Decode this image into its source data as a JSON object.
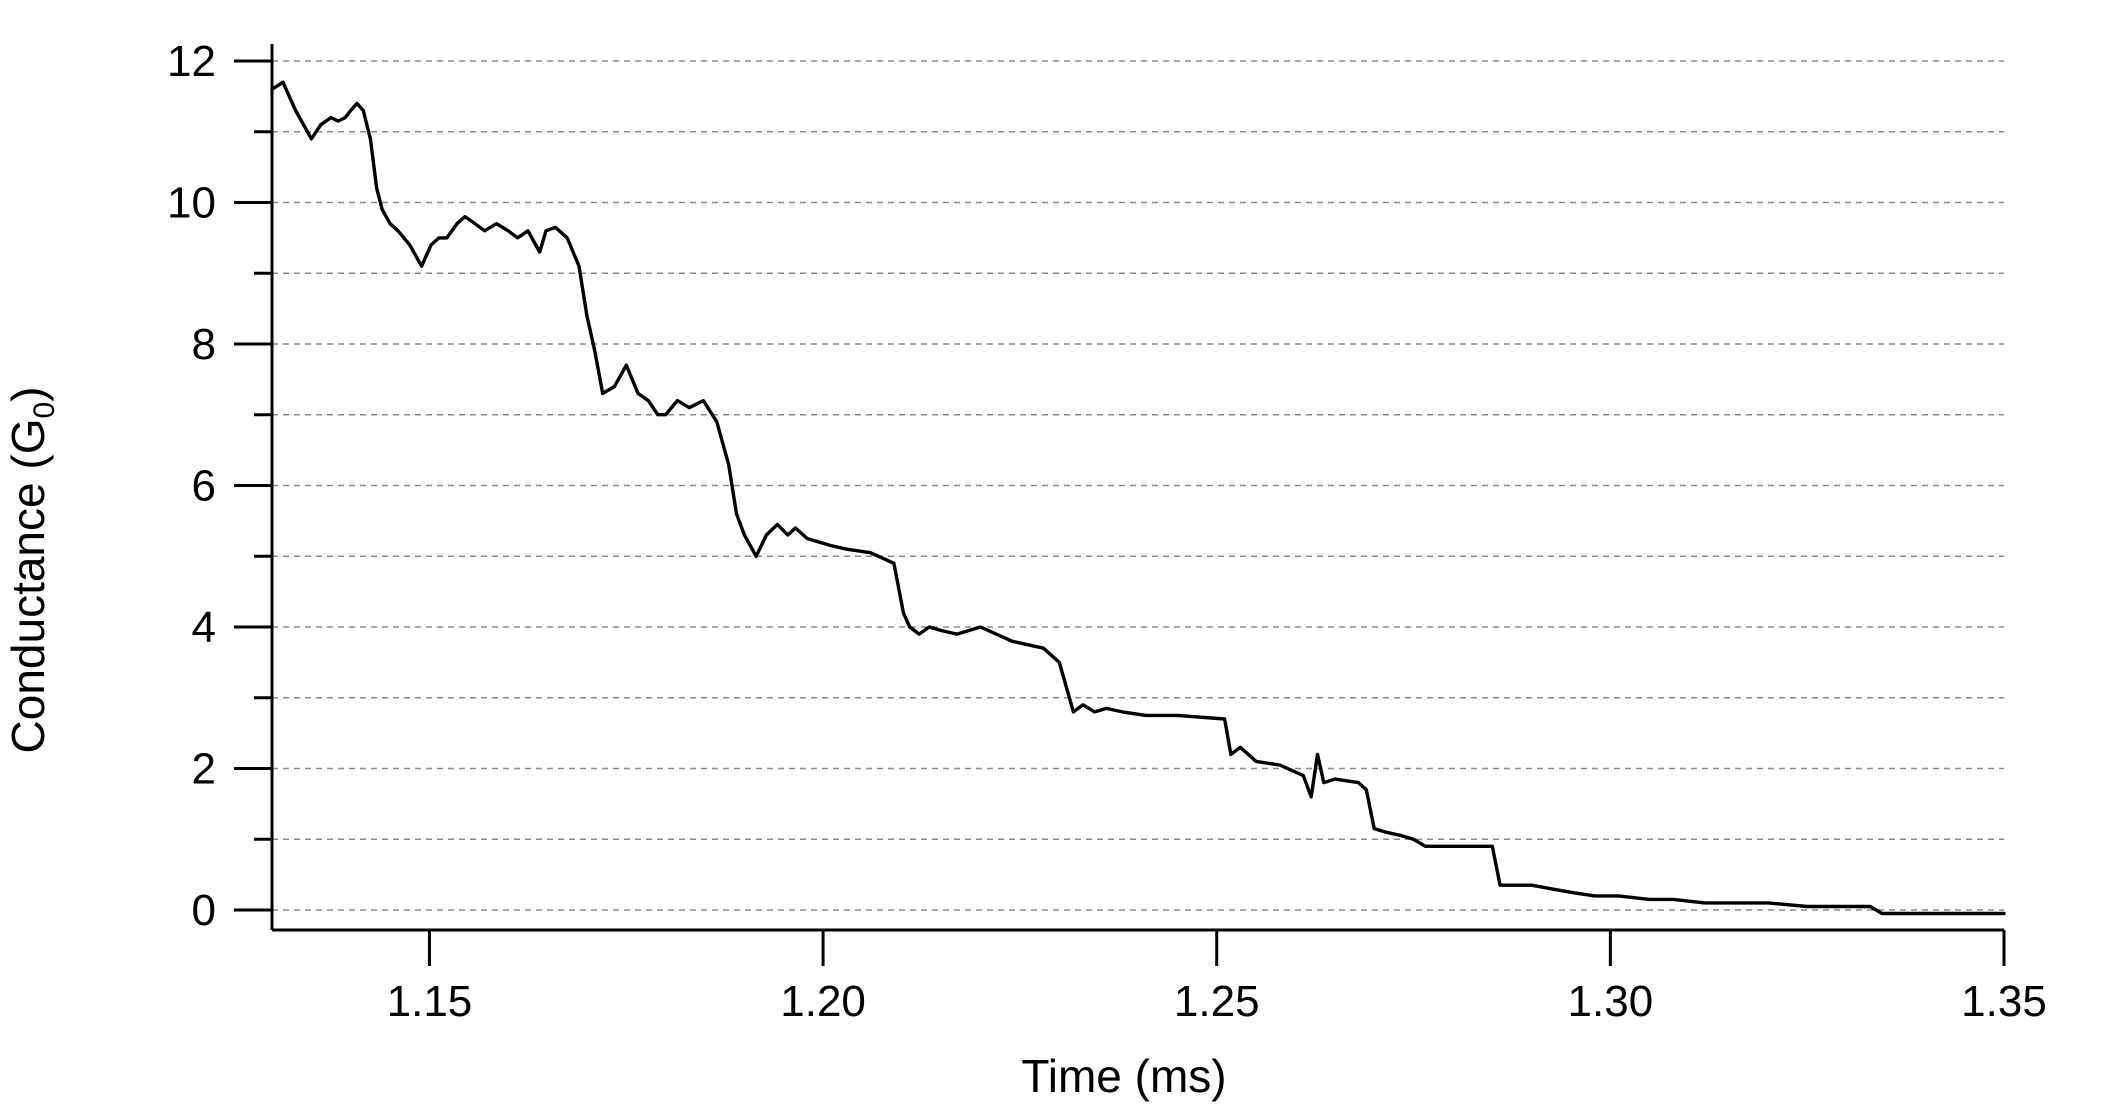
{
  "chart_data": {
    "type": "line",
    "title": "",
    "xlabel": "Time (ms)",
    "ylabel": {
      "prefix": "Conductance (G",
      "subscript": "0",
      "suffix": ")"
    },
    "xlim": [
      1.13,
      1.35
    ],
    "ylim": [
      -0.3,
      12
    ],
    "xticks": [
      1.15,
      1.2,
      1.25,
      1.3,
      1.35
    ],
    "xtick_labels": [
      "1.15",
      "1.20",
      "1.25",
      "1.30",
      "1.35"
    ],
    "yticks": [
      0,
      2,
      4,
      6,
      8,
      10,
      12
    ],
    "ytick_labels": [
      "0",
      "2",
      "4",
      "6",
      "8",
      "10",
      "12"
    ],
    "y_minor_ticks": [
      1,
      3,
      5,
      7,
      9,
      11
    ],
    "grid": {
      "y": true,
      "x": false,
      "style": "dashed",
      "color": "#888888"
    },
    "legend": "none",
    "line_color": "#000000",
    "series": [
      {
        "x": [
          1.13,
          1.1314,
          1.1322,
          1.133,
          1.134,
          1.135,
          1.1362,
          1.1375,
          1.1384,
          1.1393,
          1.14,
          1.1408,
          1.1416,
          1.1425,
          1.1433,
          1.144,
          1.145,
          1.146,
          1.1475,
          1.149,
          1.1502,
          1.1512,
          1.1522,
          1.1535,
          1.1545,
          1.1558,
          1.157,
          1.1585,
          1.16,
          1.1612,
          1.1625,
          1.164,
          1.1648,
          1.166,
          1.1675,
          1.169,
          1.17,
          1.171,
          1.172,
          1.1735,
          1.175,
          1.1765,
          1.1778,
          1.179,
          1.18,
          1.1815,
          1.183,
          1.1848,
          1.1865,
          1.188,
          1.189,
          1.19,
          1.1915,
          1.1928,
          1.1942,
          1.1955,
          1.1965,
          1.198,
          1.1995,
          1.201,
          1.203,
          1.206,
          1.209,
          1.2102,
          1.211,
          1.2122,
          1.2135,
          1.215,
          1.217,
          1.22,
          1.224,
          1.228,
          1.23,
          1.2318,
          1.233,
          1.2345,
          1.236,
          1.238,
          1.241,
          1.245,
          1.251,
          1.2518,
          1.253,
          1.255,
          1.258,
          1.261,
          1.262,
          1.2628,
          1.2636,
          1.265,
          1.268,
          1.269,
          1.27,
          1.2715,
          1.2735,
          1.275,
          1.2765,
          1.279,
          1.282,
          1.285,
          1.286,
          1.2875,
          1.29,
          1.2925,
          1.295,
          1.298,
          1.301,
          1.305,
          1.308,
          1.312,
          1.316,
          1.32,
          1.325,
          1.33,
          1.333,
          1.3345,
          1.338,
          1.342,
          1.346,
          1.35
        ],
        "y": [
          11.6,
          11.7,
          11.5,
          11.3,
          11.1,
          10.9,
          11.1,
          11.2,
          11.15,
          11.2,
          11.3,
          11.4,
          11.3,
          10.9,
          10.2,
          9.9,
          9.7,
          9.6,
          9.4,
          9.1,
          9.4,
          9.5,
          9.5,
          9.7,
          9.8,
          9.7,
          9.6,
          9.7,
          9.6,
          9.5,
          9.6,
          9.3,
          9.6,
          9.65,
          9.5,
          9.1,
          8.4,
          7.9,
          7.3,
          7.4,
          7.7,
          7.3,
          7.2,
          7.0,
          7.0,
          7.2,
          7.1,
          7.2,
          6.9,
          6.3,
          5.6,
          5.3,
          5.0,
          5.3,
          5.45,
          5.3,
          5.4,
          5.25,
          5.2,
          5.15,
          5.1,
          5.05,
          4.9,
          4.2,
          4.0,
          3.9,
          4.0,
          3.95,
          3.9,
          4.0,
          3.8,
          3.7,
          3.5,
          2.8,
          2.9,
          2.8,
          2.85,
          2.8,
          2.75,
          2.75,
          2.7,
          2.2,
          2.3,
          2.1,
          2.05,
          1.9,
          1.6,
          2.2,
          1.8,
          1.85,
          1.8,
          1.7,
          1.15,
          1.1,
          1.05,
          1.0,
          0.9,
          0.9,
          0.9,
          0.9,
          0.35,
          0.35,
          0.35,
          0.3,
          0.25,
          0.2,
          0.2,
          0.15,
          0.15,
          0.1,
          0.1,
          0.1,
          0.05,
          0.05,
          0.05,
          -0.05,
          -0.05,
          -0.05,
          -0.05,
          -0.05
        ]
      }
    ]
  }
}
